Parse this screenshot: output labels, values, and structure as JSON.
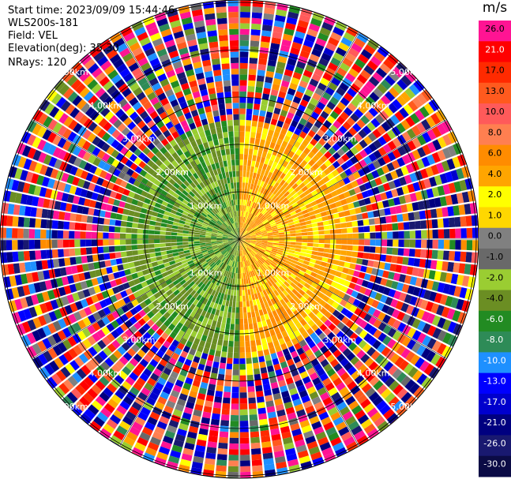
{
  "header": {
    "start_time": "Start time: 2023/09/09 15:44:46",
    "instrument": "WLS200s-181",
    "field": "Field: VEL",
    "elevation": "Elevation(deg): 35.30",
    "nrays": "NRays: 120"
  },
  "colorbar": {
    "unit": "m/s",
    "labels": [
      "26.0",
      "21.0",
      "17.0",
      "13.0",
      "10.0",
      "8.0",
      "6.0",
      "4.0",
      "2.0",
      "1.0",
      "0.0",
      "-1.0",
      "-2.0",
      "-4.0",
      "-6.0",
      "-8.0",
      "-10.0",
      "-13.0",
      "-17.0",
      "-21.0",
      "-26.0",
      "-30.0"
    ],
    "colors": [
      "#ff1493",
      "#ff0000",
      "#ff2a00",
      "#ff5a1e",
      "#ff5a5a",
      "#ff7f50",
      "#ff8c00",
      "#ffa500",
      "#ffff00",
      "#ffd700",
      "#808080",
      "#696969",
      "#9acd32",
      "#6b8e23",
      "#228b22",
      "#2e8b57",
      "#1e90ff",
      "#0000ff",
      "#0000cd",
      "#000080",
      "#191970",
      "#0b0b45"
    ]
  },
  "chart_data": {
    "type": "heatmap",
    "projection": "polar PPI",
    "field": "VEL",
    "units": "m/s",
    "n_rays": 120,
    "range_rings_km": [
      1,
      2,
      3,
      4,
      5
    ],
    "ring_labels": [
      "1.00km",
      "2.00km",
      "3.00km",
      "4.00km",
      "5.00km"
    ],
    "color_range": [
      -30,
      26
    ],
    "value_regions": [
      {
        "azimuth_deg": [
          0,
          180
        ],
        "range_km": [
          0,
          2.5
        ],
        "approx_value": 3
      },
      {
        "azimuth_deg": [
          180,
          360
        ],
        "range_km": [
          0,
          2.5
        ],
        "approx_value": -5
      },
      {
        "azimuth_deg": [
          0,
          360
        ],
        "range_km": [
          2.5,
          5.5
        ],
        "approx_value": "noisy"
      }
    ]
  }
}
